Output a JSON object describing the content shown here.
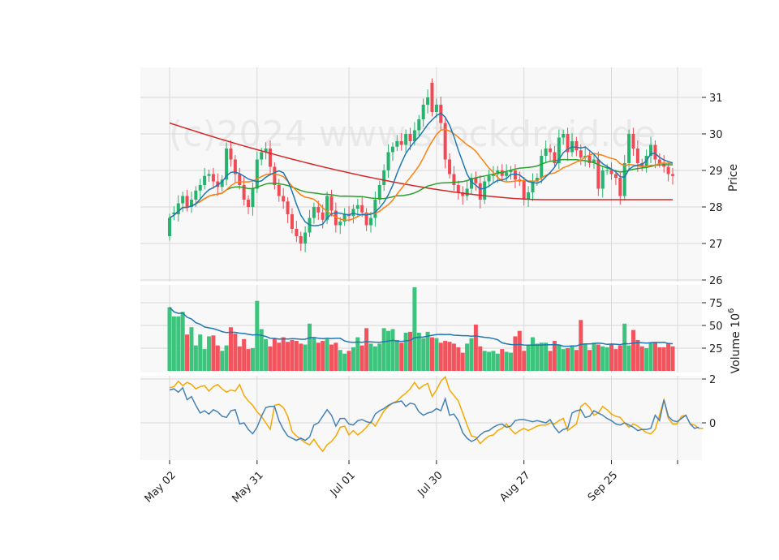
{
  "watermark": "(c)2024 www.stockdroid.de",
  "chart_data": {
    "type": "candlestick",
    "x_labels": [
      "May 02",
      "May 31",
      "Jul 01",
      "Jul 30",
      "Aug 27",
      "Sep 25"
    ],
    "price_axis": {
      "label": "Price",
      "ylim": [
        26,
        31.8
      ],
      "ticks": [
        26,
        27,
        28,
        29,
        30,
        31
      ]
    },
    "volume_axis": {
      "label": "Volume",
      "exponent_label": "10",
      "exponent": "6",
      "ylim": [
        0,
        100
      ],
      "ticks": [
        25,
        50,
        75
      ]
    },
    "indicator_axis": {
      "ylim": [
        -1.0,
        2.0
      ],
      "ticks": [
        0,
        2
      ]
    },
    "grid": true,
    "colors": {
      "up": "#26b36e",
      "down": "#f04a55",
      "background": "#f8f8f8",
      "grid": "#d8d8d8",
      "ma_fast": "#1f77b4",
      "ma_mid": "#ff7f0e",
      "ma_slow": "#2ca02c",
      "ma_long": "#d62728",
      "vol_ma": "#1f77b4",
      "ind_line": "#4682b4",
      "ind_signal": "#f5a800"
    },
    "close": [
      27.7,
      27.85,
      28.1,
      28.3,
      28.0,
      28.2,
      28.45,
      28.6,
      28.85,
      28.9,
      28.7,
      28.55,
      28.75,
      29.6,
      29.3,
      28.9,
      28.6,
      28.2,
      28.0,
      28.5,
      29.3,
      29.5,
      29.6,
      29.1,
      28.6,
      28.3,
      28.15,
      27.8,
      27.4,
      27.2,
      27.0,
      27.3,
      27.7,
      28.0,
      27.85,
      27.65,
      28.3,
      27.9,
      27.5,
      27.6,
      27.8,
      27.75,
      27.95,
      28.05,
      27.85,
      27.5,
      27.7,
      28.2,
      28.6,
      29.0,
      29.5,
      29.65,
      29.8,
      29.7,
      30.0,
      29.8,
      30.1,
      30.4,
      30.8,
      31.0,
      30.6,
      30.8,
      30.3,
      29.3,
      28.9,
      28.6,
      28.4,
      28.3,
      28.5,
      28.8,
      28.65,
      28.2,
      28.7,
      28.85,
      28.9,
      29.0,
      28.85,
      28.95,
      29.0,
      28.75,
      28.7,
      28.2,
      28.4,
      28.7,
      28.8,
      29.4,
      29.6,
      29.5,
      29.2,
      29.9,
      30.0,
      29.5,
      29.8,
      29.55,
      29.35,
      29.4,
      29.2,
      29.3,
      28.5,
      29.0,
      29.0,
      28.9,
      28.8,
      28.3,
      29.2,
      30.0,
      29.6,
      29.2,
      29.1,
      29.4,
      29.7,
      29.3,
      29.2,
      29.1,
      28.9,
      28.85
    ],
    "open": [
      27.2,
      27.8,
      27.8,
      28.1,
      28.3,
      28.0,
      28.2,
      28.45,
      28.6,
      28.85,
      28.9,
      28.7,
      28.55,
      28.75,
      29.6,
      29.3,
      28.9,
      28.6,
      28.2,
      28.0,
      28.5,
      29.3,
      29.5,
      29.6,
      29.1,
      28.6,
      28.3,
      28.15,
      27.8,
      27.4,
      27.2,
      27.0,
      27.3,
      27.7,
      28.0,
      27.85,
      27.65,
      28.3,
      27.9,
      27.5,
      27.6,
      27.8,
      27.75,
      27.95,
      28.05,
      27.85,
      27.5,
      27.7,
      28.2,
      28.6,
      29.0,
      29.5,
      29.65,
      29.8,
      29.7,
      30.0,
      29.8,
      30.1,
      30.4,
      30.8,
      31.4,
      30.6,
      30.8,
      30.3,
      29.3,
      28.9,
      28.6,
      28.4,
      28.3,
      28.5,
      28.8,
      28.65,
      28.2,
      28.7,
      28.85,
      28.9,
      29.0,
      28.85,
      28.95,
      29.0,
      28.75,
      28.7,
      28.2,
      28.4,
      28.7,
      28.8,
      29.4,
      29.6,
      29.5,
      29.2,
      29.9,
      30.0,
      29.5,
      29.8,
      29.55,
      29.35,
      29.4,
      29.2,
      29.3,
      28.5,
      29.0,
      29.0,
      28.9,
      28.8,
      28.3,
      29.2,
      30.0,
      29.6,
      29.2,
      29.1,
      29.4,
      29.7,
      29.3,
      29.2,
      29.1,
      28.9
    ],
    "volume": [
      70,
      60,
      60,
      65,
      40,
      48,
      28,
      40,
      24,
      38,
      39,
      28,
      22,
      28,
      48,
      41,
      27,
      35,
      24,
      25,
      77,
      46,
      35,
      27,
      36,
      31,
      37,
      32,
      34,
      33,
      30,
      29,
      52,
      36,
      31,
      33,
      35,
      29,
      31,
      23,
      19,
      22,
      26,
      37,
      28,
      47,
      30,
      27,
      30,
      47,
      44,
      46,
      34,
      31,
      42,
      43,
      92,
      42,
      36,
      43,
      37,
      36,
      31,
      33,
      32,
      30,
      26,
      20,
      30,
      36,
      51,
      27,
      22,
      21,
      22,
      19,
      24,
      21,
      20,
      38,
      44,
      22,
      28,
      37,
      30,
      31,
      31,
      22,
      33,
      29,
      24,
      25,
      27,
      23,
      56,
      30,
      23,
      31,
      29,
      27,
      26,
      29,
      24,
      28,
      52,
      28,
      45,
      34,
      27,
      25,
      31,
      31,
      26,
      26,
      30,
      27
    ],
    "indicator_main": [
      1.5,
      1.55,
      1.4,
      1.6,
      1.05,
      1.2,
      0.8,
      0.45,
      0.55,
      0.4,
      0.6,
      0.5,
      0.3,
      0.25,
      0.55,
      0.6,
      -0.05,
      0.0,
      -0.3,
      -0.5,
      -0.2,
      0.3,
      0.7,
      0.75,
      0.75,
      0.1,
      -0.3,
      -0.6,
      -0.7,
      -0.8,
      -0.7,
      -0.8,
      -0.65,
      -0.1,
      0.0,
      0.3,
      0.6,
      0.35,
      -0.15,
      0.2,
      0.2,
      -0.05,
      -0.1,
      0.1,
      0.15,
      0.05,
      0.0,
      0.4,
      0.55,
      0.65,
      0.8,
      0.9,
      0.95,
      1.0,
      0.75,
      0.9,
      0.85,
      0.5,
      0.35,
      0.45,
      0.5,
      0.65,
      0.55,
      1.1,
      0.35,
      0.4,
      0.1,
      -0.45,
      -0.7,
      -0.85,
      -0.75,
      -0.55,
      -0.4,
      -0.35,
      -0.2,
      -0.1,
      -0.05,
      -0.2,
      -0.15,
      0.1,
      0.15,
      0.15,
      0.1,
      0.05,
      0.1,
      0.05,
      0.0,
      0.15,
      -0.2,
      -0.45,
      -0.3,
      -0.25,
      0.45,
      0.55,
      0.6,
      0.25,
      0.3,
      0.55,
      0.45,
      0.35,
      0.2,
      0.1,
      -0.05,
      -0.1,
      0.0,
      -0.1,
      -0.2,
      -0.35,
      -0.3,
      -0.3,
      -0.25,
      0.35,
      0.1,
      1.05,
      0.3,
      0.1,
      0.05,
      0.2,
      0.35,
      -0.05,
      -0.25,
      -0.2
    ],
    "indicator_signal": [
      1.6,
      1.65,
      1.9,
      1.7,
      1.85,
      1.75,
      1.55,
      1.65,
      1.7,
      1.45,
      1.65,
      1.75,
      1.55,
      1.4,
      1.5,
      1.45,
      1.75,
      1.25,
      1.0,
      0.8,
      0.5,
      0.3,
      0.0,
      -0.3,
      0.8,
      0.85,
      0.7,
      0.3,
      -0.4,
      -0.6,
      -0.75,
      -0.9,
      -1.0,
      -0.75,
      -1.05,
      -1.3,
      -1.0,
      -0.85,
      -0.6,
      -0.2,
      -0.15,
      -0.55,
      -0.35,
      -0.55,
      -0.4,
      -0.2,
      0.05,
      -0.15,
      0.2,
      0.55,
      0.75,
      0.9,
      1.0,
      1.2,
      1.35,
      1.55,
      1.85,
      1.55,
      1.7,
      1.8,
      1.2,
      1.5,
      1.9,
      2.1,
      1.5,
      1.25,
      1.0,
      0.45,
      -0.1,
      -0.6,
      -0.65,
      -0.95,
      -0.75,
      -0.6,
      -0.55,
      -0.35,
      -0.25,
      -0.05,
      -0.3,
      -0.5,
      -0.35,
      -0.25,
      -0.35,
      -0.25,
      -0.15,
      -0.1,
      -0.1,
      0.0,
      -0.05,
      0.1,
      0.2,
      -0.35,
      -0.2,
      -0.05,
      0.75,
      0.9,
      0.7,
      0.35,
      0.45,
      0.75,
      0.6,
      0.4,
      0.3,
      0.25,
      0.0,
      -0.2,
      -0.05,
      -0.15,
      -0.3,
      -0.45,
      -0.5,
      -0.3,
      0.35,
      1.05,
      0.2,
      -0.05,
      -0.05,
      0.3,
      0.35,
      -0.05,
      -0.1,
      -0.25,
      -0.25
    ]
  }
}
